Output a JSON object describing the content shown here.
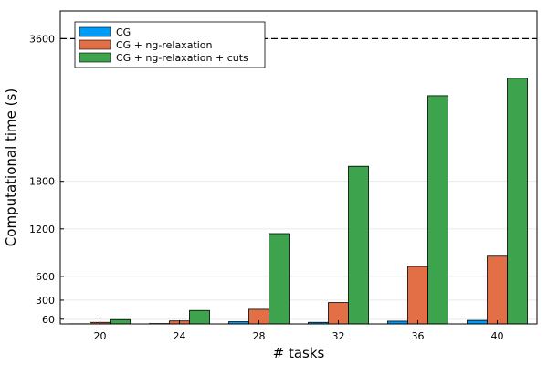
{
  "chart_data": {
    "type": "bar",
    "categories": [
      "20",
      "24",
      "28",
      "32",
      "36",
      "40"
    ],
    "series": [
      {
        "name": "CG",
        "values": [
          2,
          5,
          28,
          20,
          35,
          45
        ],
        "color": "#009AF9"
      },
      {
        "name": "CG + ng-relaxation",
        "values": [
          20,
          38,
          185,
          270,
          725,
          855
        ],
        "color": "#E26F46"
      },
      {
        "name": "CG + ng-relaxation + cuts",
        "values": [
          55,
          170,
          1140,
          1990,
          2880,
          3100
        ],
        "color": "#3DA44D"
      }
    ],
    "xlabel": "# tasks",
    "ylabel": "Computational time (s)",
    "yticks": [
      60,
      300,
      600,
      1200,
      1800,
      3600
    ],
    "ylim": [
      0,
      3950
    ],
    "reference_line": {
      "value": 3600,
      "style": "dashed"
    },
    "grid": true,
    "legend_position": "top-left"
  }
}
